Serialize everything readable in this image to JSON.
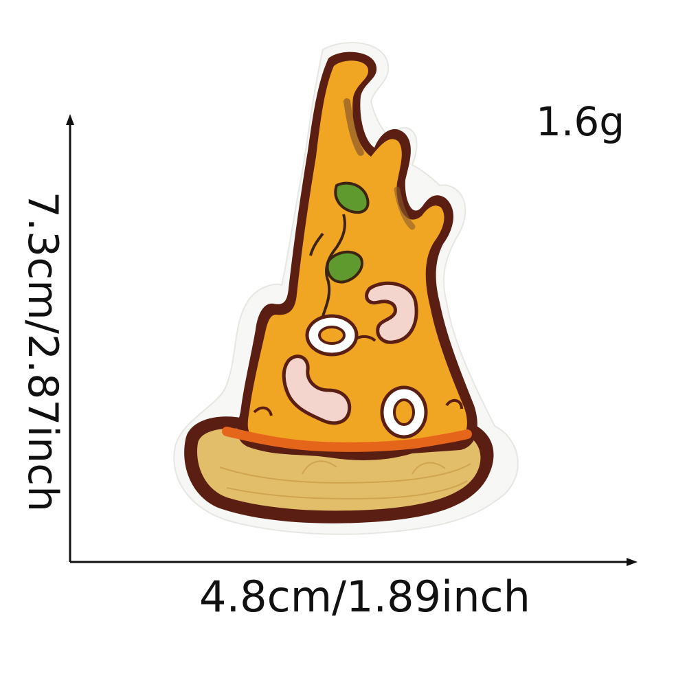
{
  "weight_label": "1.6g",
  "dimensions": {
    "width_label": "4.8cm/1.89inch",
    "height_label": "7.3cm/2.87inch"
  },
  "product": {
    "icon": "pizza-slice-patch",
    "colors": {
      "cheese": "#F0A523",
      "crust": "#E3BE6A",
      "outline": "#5A1E12",
      "sauce": "#E5661B",
      "basil": "#5E9A2E",
      "shrimp": "#F3D5CE",
      "border": "#F7F7F5"
    }
  }
}
